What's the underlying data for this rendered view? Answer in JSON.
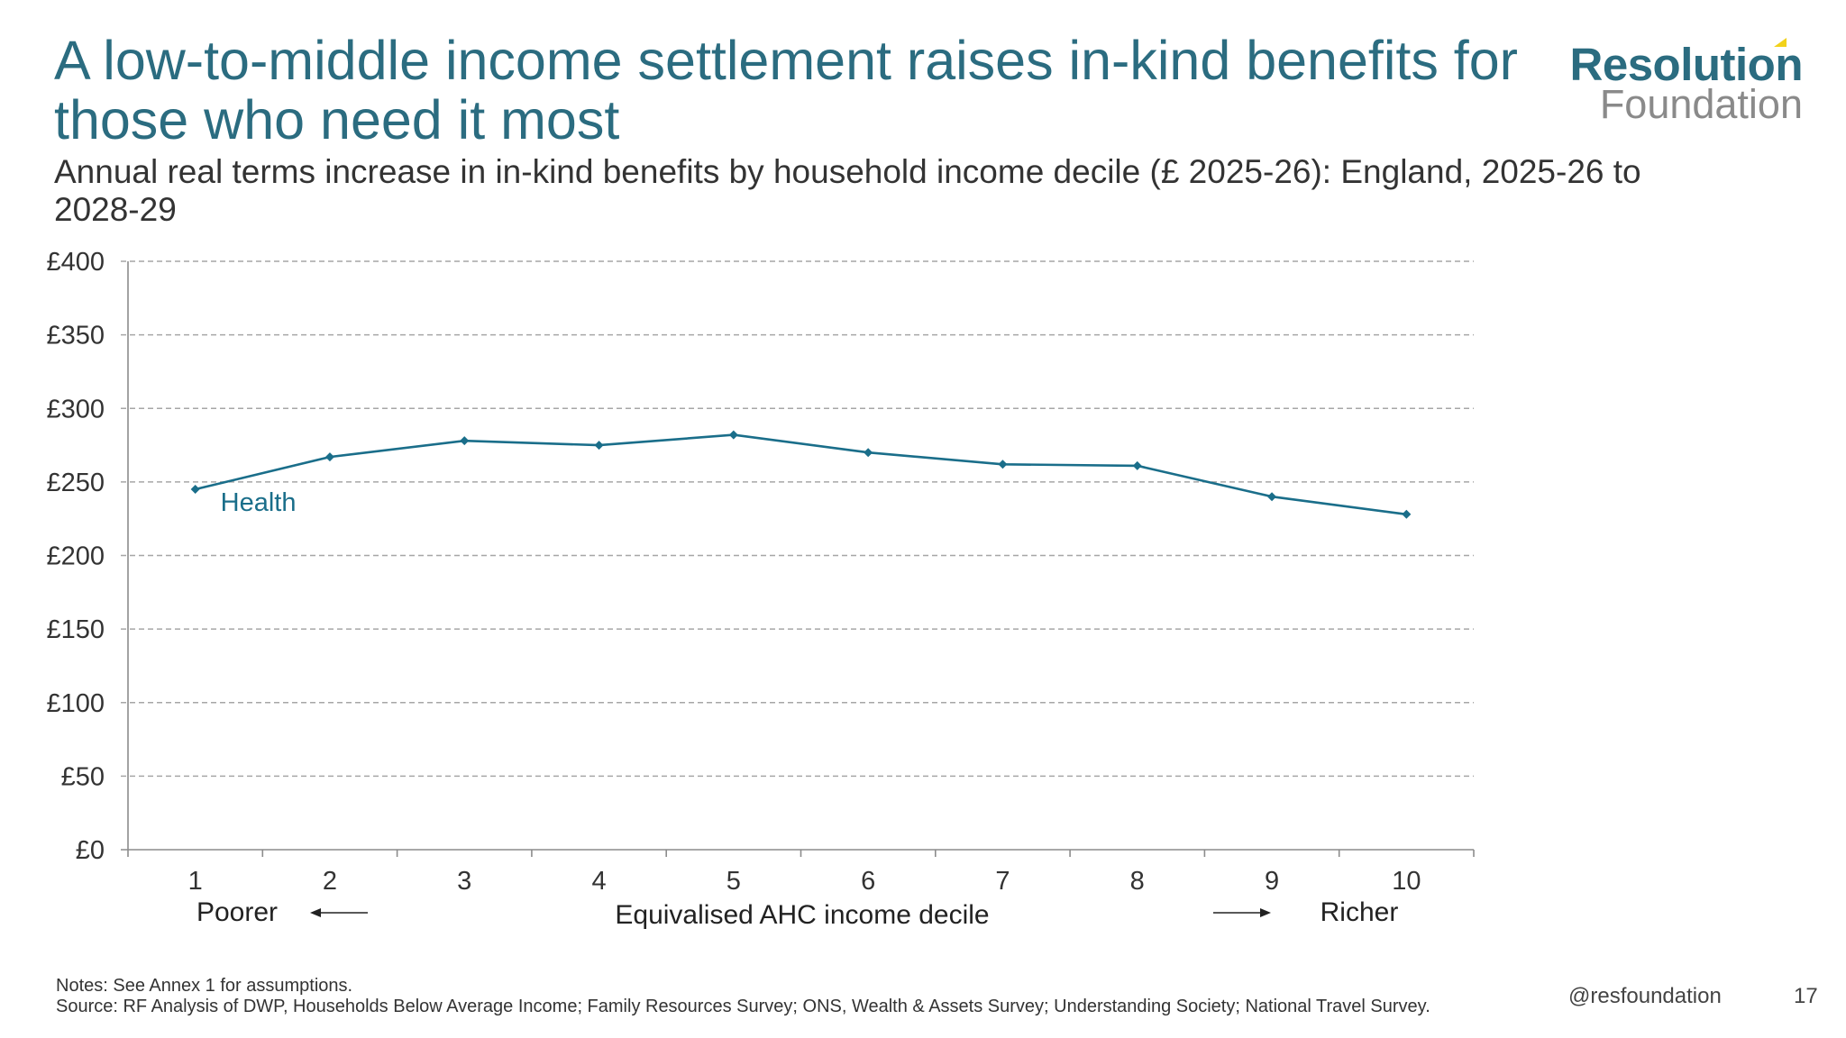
{
  "slide": {
    "title": "A low-to-middle income settlement raises in-kind benefits for those who need it most",
    "subtitle": "Annual real terms increase in in-kind benefits by household income decile (£ 2025-26): England, 2025-26 to 2028-29",
    "notes": "Notes: See Annex 1 for assumptions.",
    "source": "Source: RF Analysis of DWP, Households Below Average Income; Family Resources Survey; ONS, Wealth & Assets Survey; Understanding Society; National Travel Survey.",
    "handle": "@resfoundation",
    "page_number": "17"
  },
  "logo": {
    "main": "Resolution",
    "sub": "Foundation"
  },
  "colors": {
    "accent": "#2b6c80",
    "series": "#1a6e8a",
    "grid": "#a6a6a6",
    "logo_yellow": "#f2d21b"
  },
  "chart_data": {
    "type": "line",
    "title": "Annual real terms increase in in-kind benefits by household income decile (£ 2025-26): England, 2025-26 to 2028-29",
    "categories": [
      "1",
      "2",
      "3",
      "4",
      "5",
      "6",
      "7",
      "8",
      "9",
      "10"
    ],
    "series": [
      {
        "name": "Health",
        "values": [
          245,
          267,
          278,
          275,
          282,
          270,
          262,
          261,
          240,
          228
        ]
      }
    ],
    "xlabel": "Equivalised AHC income decile",
    "x_left_note": "Poorer",
    "x_right_note": "Richer",
    "ylabel": "",
    "ylim": [
      0,
      400
    ],
    "yticks": [
      0,
      50,
      100,
      150,
      200,
      250,
      300,
      350,
      400
    ],
    "ytick_labels": [
      "£0",
      "£50",
      "£100",
      "£150",
      "£200",
      "£250",
      "£300",
      "£350",
      "£400"
    ],
    "grid": true,
    "legend": "inline label near first point"
  }
}
